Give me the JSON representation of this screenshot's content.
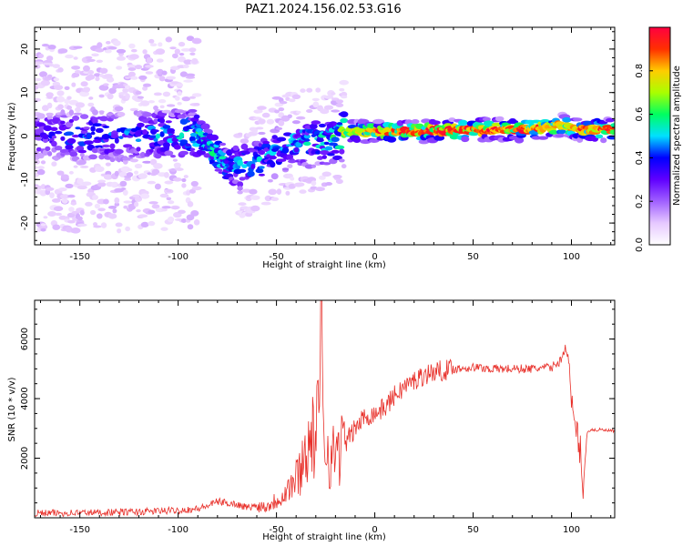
{
  "title": "PAZ1.2024.156.02.53.G16",
  "chart_data": [
    {
      "type": "heatmap",
      "xlabel": "Height of straight line (km)",
      "ylabel": "Frequency (Hz)",
      "xlim": [
        -173,
        122
      ],
      "ylim": [
        -25,
        25
      ],
      "x_ticks": [
        -150,
        -100,
        -50,
        0,
        50,
        100
      ],
      "y_ticks": [
        -20,
        -10,
        0,
        10,
        20
      ],
      "colorbar": {
        "label": "Normalized spectral amplitude",
        "range": [
          0,
          1
        ],
        "ticks": [
          0.0,
          0.2,
          0.4,
          0.6,
          0.8
        ],
        "colormap": "gist_rainbow_r",
        "colors": [
          "#ffffff",
          "#e6c8ff",
          "#a060ff",
          "#6000ff",
          "#0000ff",
          "#00e0ff",
          "#00ff60",
          "#aaff00",
          "#ffcc00",
          "#ff3000",
          "#ff0040"
        ]
      },
      "ridge": [
        {
          "x": -173,
          "freq": 0.0,
          "amp": 0.35
        },
        {
          "x": -150,
          "freq": 0.0,
          "amp": 0.4
        },
        {
          "x": -120,
          "freq": 0.0,
          "amp": 0.42
        },
        {
          "x": -100,
          "freq": 0.5,
          "amp": 0.5
        },
        {
          "x": -90,
          "freq": 0.5,
          "amp": 0.55
        },
        {
          "x": -85,
          "freq": -2.0,
          "amp": 0.5
        },
        {
          "x": -80,
          "freq": -3.5,
          "amp": 0.55
        },
        {
          "x": -75,
          "freq": -7.0,
          "amp": 0.45
        },
        {
          "x": -60,
          "freq": -6.0,
          "amp": 0.45
        },
        {
          "x": -45,
          "freq": -2.0,
          "amp": 0.45
        },
        {
          "x": -30,
          "freq": -1.0,
          "amp": 0.5
        },
        {
          "x": -20,
          "freq": -1.0,
          "amp": 0.55
        },
        {
          "x": -15,
          "freq": 1.0,
          "amp": 0.7
        },
        {
          "x": 0,
          "freq": 1.0,
          "amp": 0.85
        },
        {
          "x": 20,
          "freq": 1.0,
          "amp": 0.95
        },
        {
          "x": 50,
          "freq": 1.5,
          "amp": 0.92
        },
        {
          "x": 80,
          "freq": 1.5,
          "amp": 0.9
        },
        {
          "x": 95,
          "freq": 2.5,
          "amp": 0.8
        },
        {
          "x": 105,
          "freq": 1.5,
          "amp": 0.85
        },
        {
          "x": 122,
          "freq": 1.5,
          "amp": 0.88
        }
      ]
    },
    {
      "type": "line",
      "xlabel": "Height of straight line (km)",
      "ylabel": "SNR (10 * v/v)",
      "xlim": [
        -173,
        122
      ],
      "ylim": [
        0,
        7300
      ],
      "x_ticks": [
        -150,
        -100,
        -50,
        0,
        50,
        100
      ],
      "y_ticks": [
        2000,
        4000,
        6000
      ],
      "line_color": "#e8302a",
      "series": [
        {
          "x": [
            -173,
            -150,
            -120,
            -100,
            -90,
            -85,
            -80,
            -75,
            -70,
            -65,
            -60,
            -55,
            -50,
            -45,
            -40,
            -37,
            -35,
            -32,
            -30,
            -28,
            -27,
            -26,
            -25,
            -22,
            -20,
            -18,
            -15,
            -12,
            -10,
            -5,
            0,
            5,
            10,
            15,
            20,
            25,
            30,
            35,
            40,
            50,
            60,
            70,
            80,
            90,
            95,
            97,
            99,
            100,
            102,
            104,
            105,
            106,
            108,
            110,
            115,
            122
          ],
          "y": [
            150,
            170,
            200,
            250,
            300,
            400,
            550,
            500,
            450,
            350,
            400,
            380,
            600,
            900,
            1300,
            1800,
            2300,
            2600,
            2800,
            3600,
            7200,
            3200,
            2600,
            1800,
            2400,
            2300,
            2500,
            2800,
            3000,
            3400,
            3500,
            3700,
            4100,
            4400,
            4600,
            4800,
            4900,
            4950,
            5000,
            5050,
            5000,
            5000,
            5000,
            5050,
            5300,
            5800,
            5100,
            3700,
            3000,
            2500,
            2000,
            1000,
            2900,
            2950,
            2950,
            2900
          ]
        }
      ]
    }
  ]
}
